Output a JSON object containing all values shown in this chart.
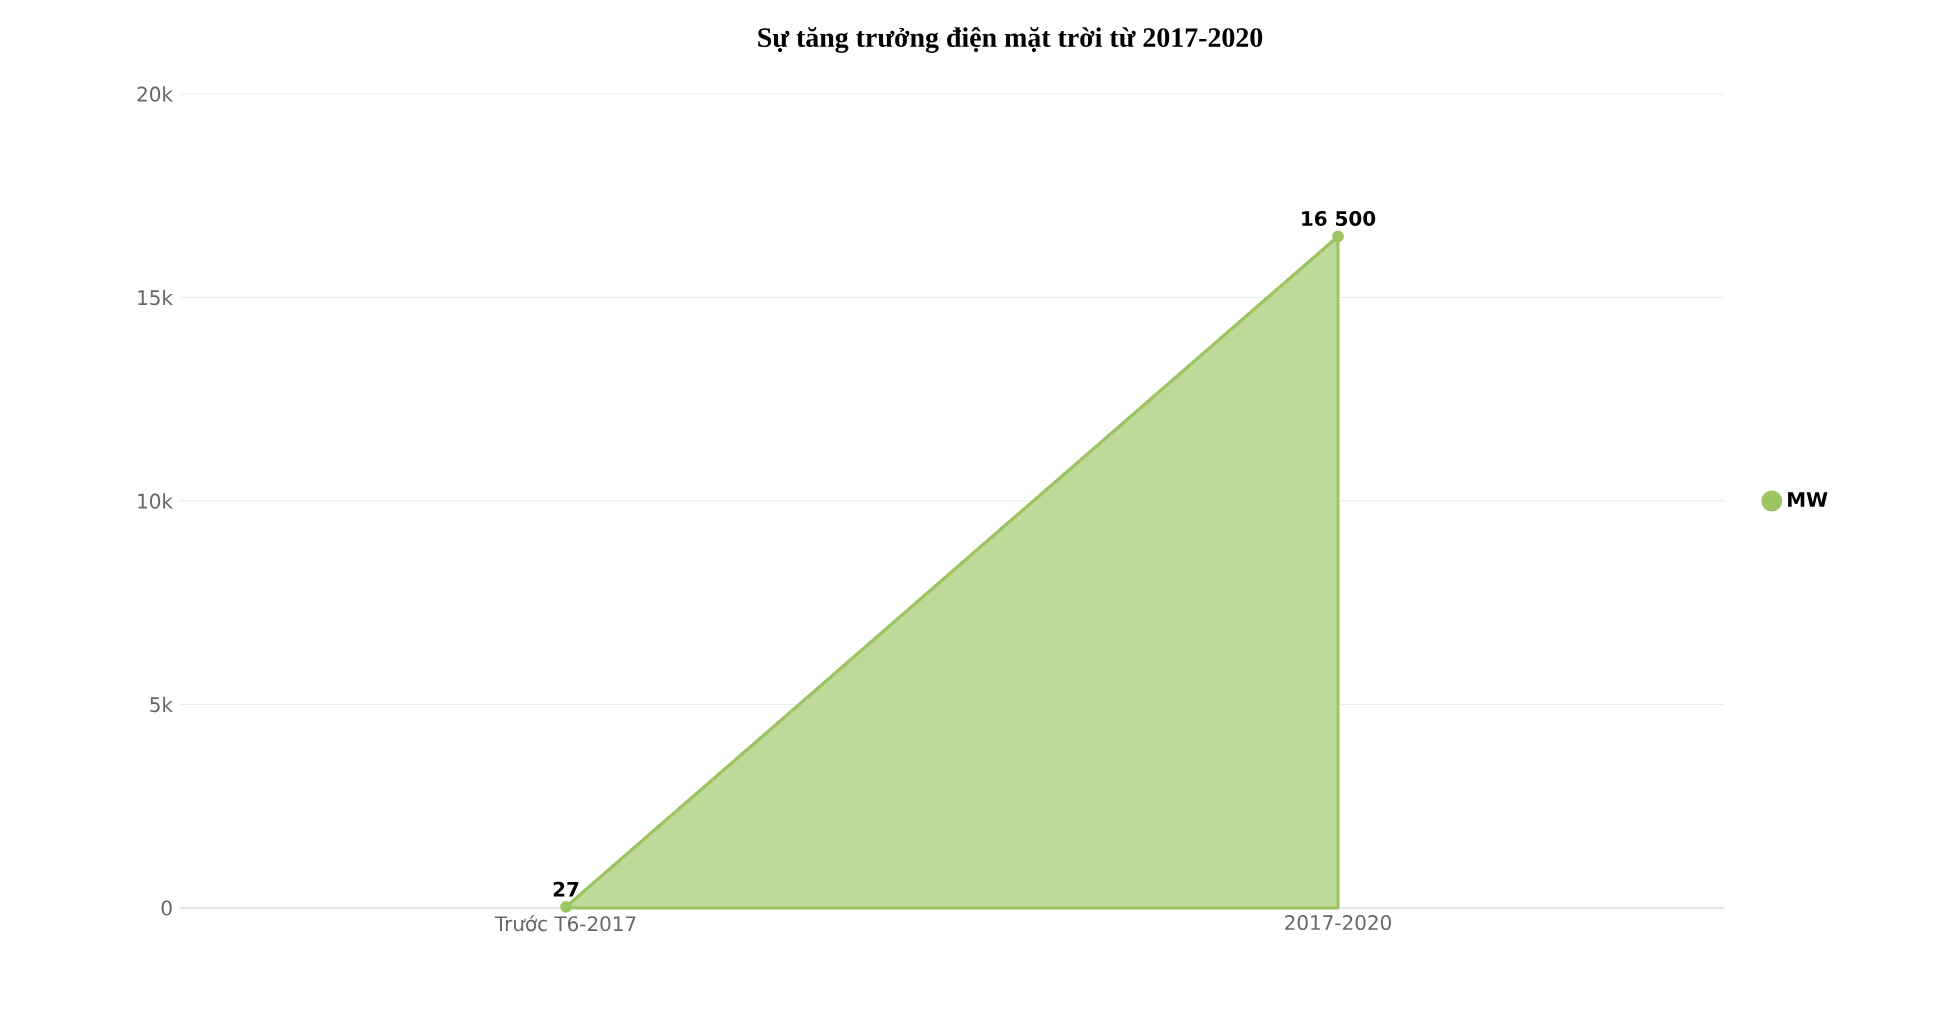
{
  "chart_data": {
    "type": "area",
    "title": "Sự tăng trưởng điện mặt trời từ 2017-2020",
    "categories": [
      "Trước T6-2017",
      "2017-2020"
    ],
    "series": [
      {
        "name": "MW",
        "color": "#9dc463",
        "values": [
          27,
          16500
        ],
        "value_labels": [
          "27",
          "16 500"
        ]
      }
    ],
    "ylim": [
      0,
      20000
    ],
    "yticks": [
      0,
      {
        "value": 5000,
        "label": "5k"
      },
      {
        "value": 10000,
        "label": "10k"
      },
      {
        "value": 15000,
        "label": "15k"
      },
      {
        "value": 20000,
        "label": "20k"
      }
    ],
    "grid": "y",
    "legend": "right",
    "marker": "circle"
  }
}
